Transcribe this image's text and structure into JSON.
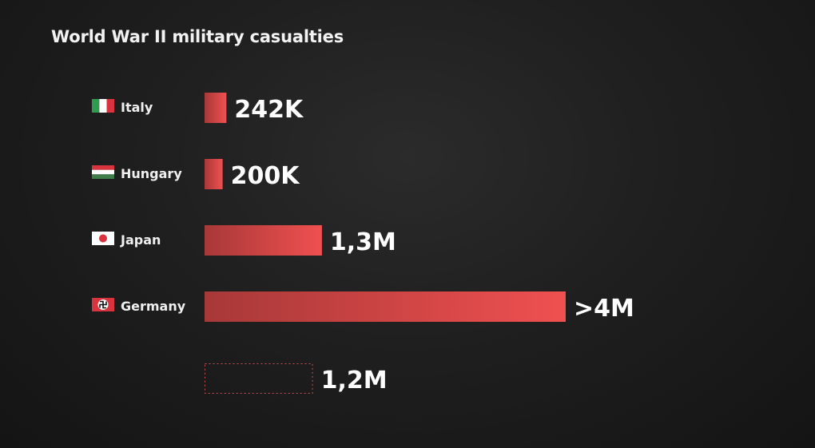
{
  "chart_data": {
    "type": "bar",
    "orientation": "horizontal",
    "title": "World War II military casualties",
    "bar_color": "#f05050",
    "bar_color_dark": "#a83838",
    "placeholder_outline_color": "#c85050",
    "rows": [
      {
        "category": "Italy",
        "flag": "italy-flag-icon",
        "value": 242000,
        "value_label": "242K",
        "style": "solid"
      },
      {
        "category": "Hungary",
        "flag": "hungary-flag-icon",
        "value": 200000,
        "value_label": "200K",
        "style": "solid"
      },
      {
        "category": "Japan",
        "flag": "japan-flag-icon",
        "value": 1300000,
        "value_label": "1,3M",
        "style": "solid"
      },
      {
        "category": "Germany",
        "flag": "germany-flag-icon",
        "value": 4000000,
        "value_label": ">4M",
        "style": "solid"
      },
      {
        "category": "",
        "flag": "",
        "value": 1200000,
        "value_label": "1,2M",
        "style": "dashed-outline"
      }
    ]
  }
}
